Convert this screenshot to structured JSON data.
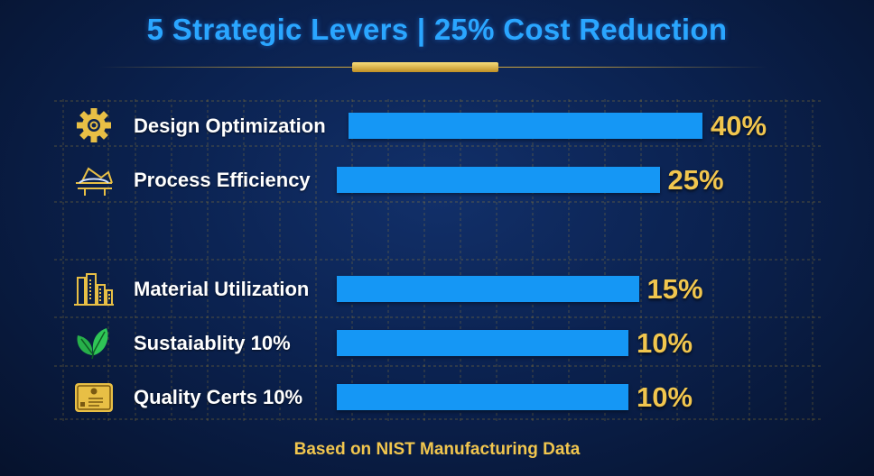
{
  "chart_data": {
    "type": "bar",
    "orientation": "horizontal",
    "title": "5 Strategic Levers | 25% Cost Reduction",
    "categories": [
      "Design Optimization",
      "Process Efficiency",
      "Material Utilization",
      "Sustaiablity 10%",
      "Quality Certs 10%"
    ],
    "values": [
      40,
      25,
      15,
      10,
      10
    ],
    "value_labels": [
      "40%",
      "25%",
      "15%",
      "10%",
      "10%"
    ],
    "icons": [
      "gear-icon",
      "conveyor-icon",
      "buildings-icon",
      "leaf-icon",
      "certificate-icon"
    ],
    "grid": true,
    "footnote": "Based on NIST Manufacturing Data",
    "colors": {
      "bar": "#1597f5",
      "title": "#2aa6ff",
      "value": "#f1c64e",
      "background": "#0b2250",
      "grid": "#b8952e"
    }
  }
}
